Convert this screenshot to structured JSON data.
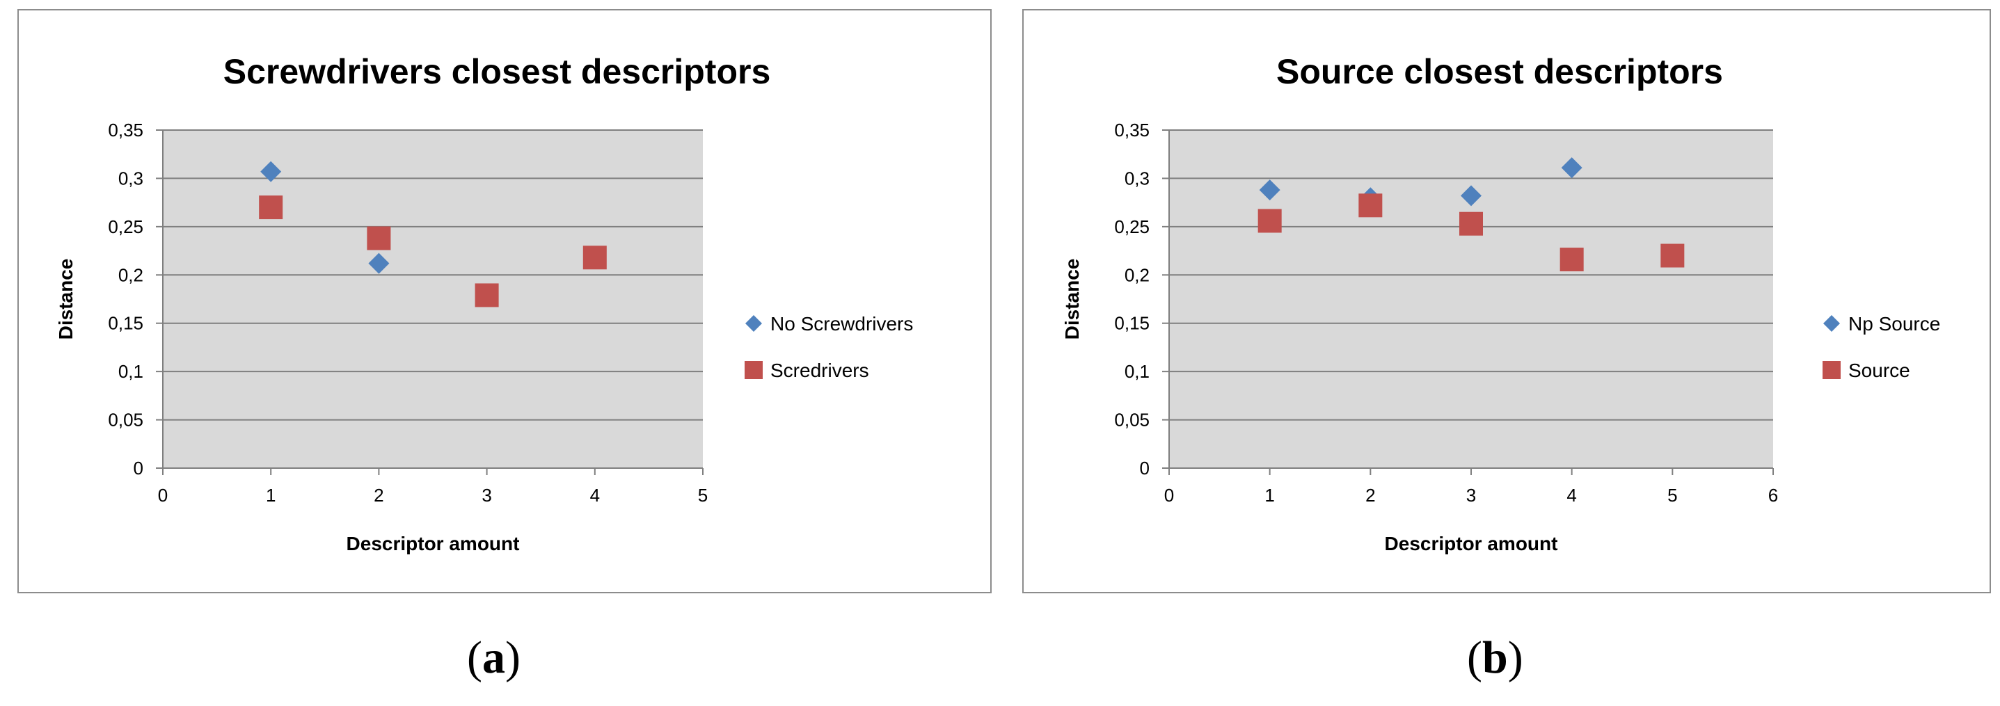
{
  "chart_data": [
    {
      "type": "scatter",
      "title": "Screwdrivers closest descriptors",
      "xlabel": "Descriptor amount",
      "ylabel": "Distance",
      "xlim": [
        0,
        5
      ],
      "ylim": [
        0,
        0.35
      ],
      "x_ticks": [
        "0",
        "1",
        "2",
        "3",
        "4",
        "5"
      ],
      "y_ticks": [
        "0",
        "0,05",
        "0,1",
        "0,15",
        "0,2",
        "0,25",
        "0,3",
        "0,35"
      ],
      "grid": true,
      "legend_position": "right",
      "series": [
        {
          "name": "No Screwdrivers",
          "marker": "diamond",
          "color": "#4f81bd",
          "points": [
            {
              "x": 1,
              "y": 0.307
            },
            {
              "x": 2,
              "y": 0.212
            }
          ]
        },
        {
          "name": "Scredrivers",
          "marker": "square",
          "color": "#c0504d",
          "points": [
            {
              "x": 1,
              "y": 0.27
            },
            {
              "x": 2,
              "y": 0.238
            },
            {
              "x": 3,
              "y": 0.179
            },
            {
              "x": 4,
              "y": 0.218
            }
          ]
        }
      ]
    },
    {
      "type": "scatter",
      "title": "Source closest descriptors",
      "xlabel": "Descriptor amount",
      "ylabel": "Distance",
      "xlim": [
        0,
        6
      ],
      "ylim": [
        0,
        0.35
      ],
      "x_ticks": [
        "0",
        "1",
        "2",
        "3",
        "4",
        "5",
        "6"
      ],
      "y_ticks": [
        "0",
        "0,05",
        "0,1",
        "0,15",
        "0,2",
        "0,25",
        "0,3",
        "0,35"
      ],
      "grid": true,
      "legend_position": "right",
      "series": [
        {
          "name": "Np Source",
          "marker": "diamond",
          "color": "#4f81bd",
          "points": [
            {
              "x": 1,
              "y": 0.288
            },
            {
              "x": 2,
              "y": 0.28
            },
            {
              "x": 3,
              "y": 0.282
            },
            {
              "x": 4,
              "y": 0.311
            }
          ]
        },
        {
          "name": "Source",
          "marker": "square",
          "color": "#c0504d",
          "points": [
            {
              "x": 1,
              "y": 0.256
            },
            {
              "x": 2,
              "y": 0.272
            },
            {
              "x": 3,
              "y": 0.253
            },
            {
              "x": 4,
              "y": 0.216
            },
            {
              "x": 5,
              "y": 0.22
            }
          ]
        }
      ]
    }
  ],
  "captions": {
    "a_open": "(",
    "a_letter": "a",
    "a_close": ")",
    "b_open": "(",
    "b_letter": "b",
    "b_close": ")"
  }
}
